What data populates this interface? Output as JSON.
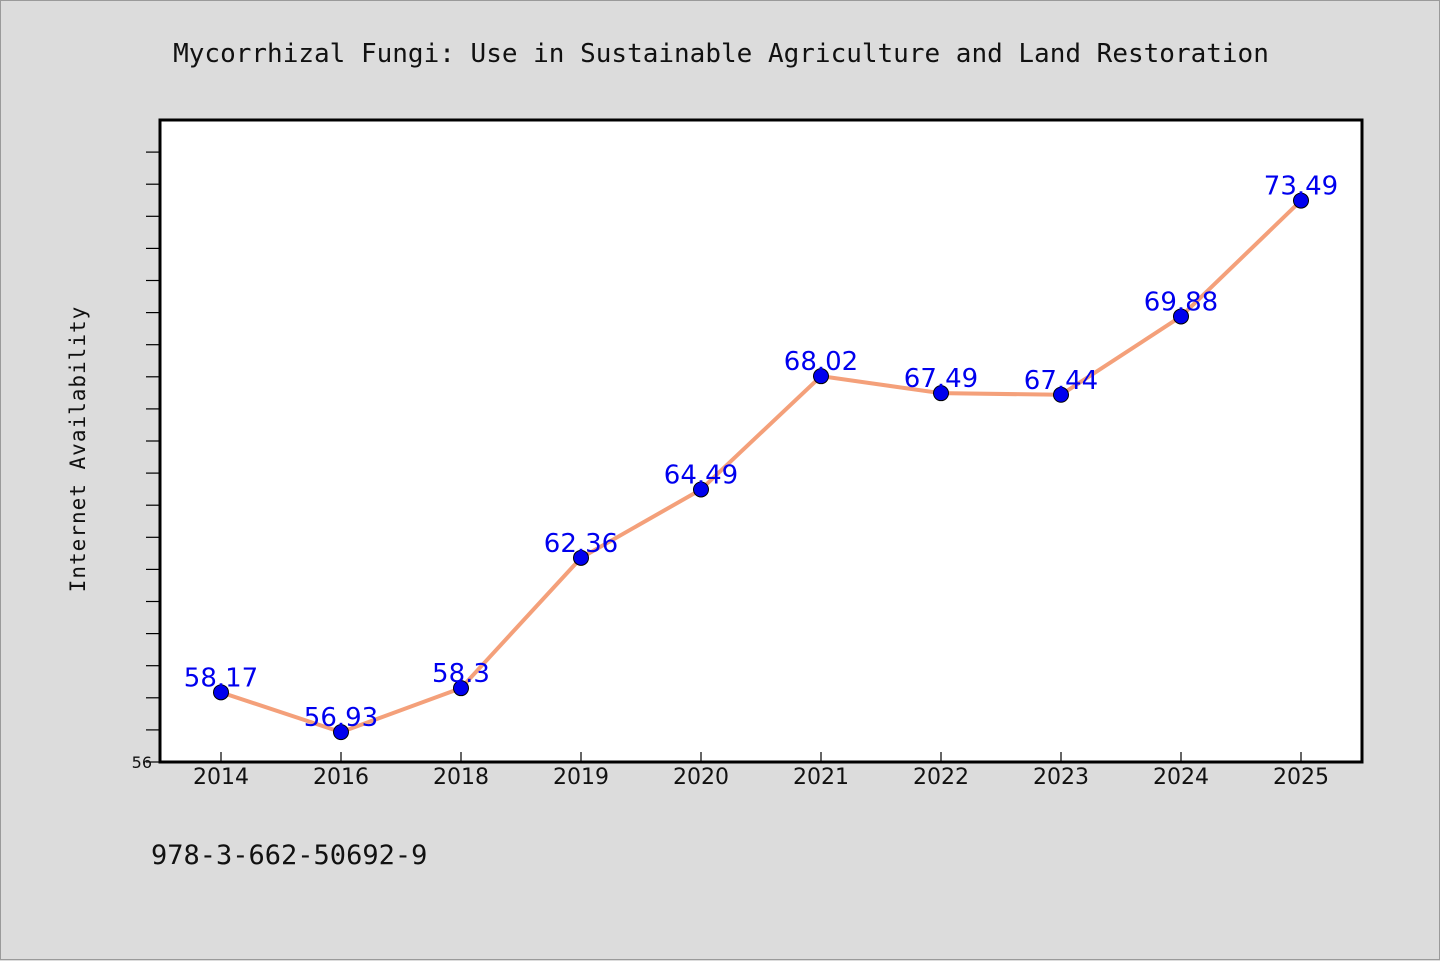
{
  "footer_code": "978-3-662-50692-9",
  "colors": {
    "background": "#dcdcdc",
    "plot_background": "#ffffff",
    "line": "#f4a07a",
    "marker": "#0000ee",
    "data_label": "#0000ee"
  },
  "chart_data": {
    "type": "line",
    "title": "Mycorrhizal Fungi: Use in Sustainable Agriculture and Land Restoration",
    "xlabel": "",
    "ylabel": "Internet Availability",
    "categories": [
      "2014",
      "2016",
      "2018",
      "2019",
      "2020",
      "2021",
      "2022",
      "2023",
      "2024",
      "2025"
    ],
    "series": [
      {
        "values": [
          58.17,
          56.93,
          58.3,
          62.36,
          64.49,
          68.02,
          67.49,
          67.44,
          69.88,
          73.49
        ]
      }
    ],
    "data_labels": [
      "58.17",
      "56.93",
      "58.3",
      "62.36",
      "64.49",
      "68.02",
      "67.49",
      "67.44",
      "69.88",
      "73.49"
    ],
    "ylim": [
      56,
      76
    ],
    "y_tick_labels": [
      "56"
    ],
    "grid": false,
    "legend": "none"
  }
}
